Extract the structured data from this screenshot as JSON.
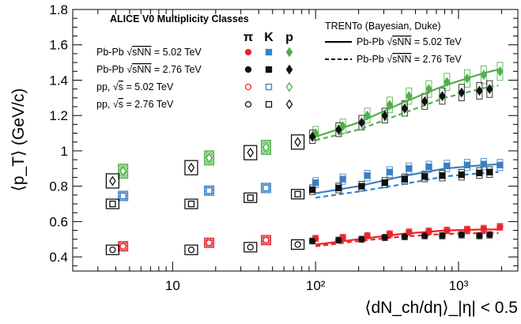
{
  "chart_data": {
    "type": "scatter",
    "title": "ALICE V0 Multiplicity Classes",
    "xlabel": "⟨dN_ch/dη⟩_|η| < 0.5",
    "ylabel": "⟨p_T⟩ (GeV/c)",
    "xscale": "log",
    "xlim": [
      2,
      2600
    ],
    "ylim": [
      0.32,
      1.8
    ],
    "xticks": [
      10,
      100,
      1000
    ],
    "xtick_labels": [
      "10",
      "10²",
      "10³"
    ],
    "yticks": [
      0.4,
      0.6,
      0.8,
      1.0,
      1.2,
      1.4,
      1.6,
      1.8
    ],
    "ytick_labels": [
      "0.4",
      "0.6",
      "0.8",
      "1",
      "1.2",
      "1.4",
      "1.6",
      "1.8"
    ],
    "species_header": [
      "π",
      "K",
      "p"
    ],
    "colors": {
      "pi": "#e8262b",
      "K": "#3a7fc4",
      "p": "#4fb04a",
      "black": "#111111"
    },
    "legend": [
      {
        "label": "Pb-Pb √sNN = 5.02 TeV",
        "label_main": "Pb-Pb ",
        "label_sqrt": "sNN",
        "label_tail": " = 5.02 TeV",
        "style": "filled-color"
      },
      {
        "label": "Pb-Pb √sNN = 2.76 TeV",
        "label_main": "Pb-Pb ",
        "label_sqrt": "sNN",
        "label_tail": " = 2.76 TeV",
        "style": "filled-black"
      },
      {
        "label": "pp, √s = 5.02 TeV",
        "label_main": "pp, ",
        "label_sqrt": "s",
        "label_tail": " = 5.02 TeV",
        "style": "open-color"
      },
      {
        "label": "pp, √s = 2.76 TeV",
        "label_main": "pp, ",
        "label_sqrt": "s",
        "label_tail": " = 2.76 TeV",
        "style": "open-black"
      }
    ],
    "model_legend": {
      "title": "TRENTo (Bayesian, Duke)",
      "entries": [
        {
          "label": "Pb-Pb √sNN = 5.02 TeV",
          "label_main": "Pb-Pb ",
          "label_sqrt": "sNN",
          "label_tail": " = 5.02 TeV",
          "dash": "solid"
        },
        {
          "label": "Pb-Pb √sNN = 2.76 TeV",
          "label_main": "Pb-Pb ",
          "label_sqrt": "sNN",
          "label_tail": " = 2.76 TeV",
          "dash": "dashed"
        }
      ]
    },
    "series": [
      {
        "name": "π Pb-Pb 5.02 TeV",
        "color": "pi",
        "marker": "circle-filled",
        "x": [
          100,
          155,
          230,
          330,
          450,
          620,
          830,
          1150,
          1500,
          1950
        ],
        "y": [
          0.505,
          0.51,
          0.52,
          0.53,
          0.54,
          0.545,
          0.55,
          0.555,
          0.56,
          0.57
        ]
      },
      {
        "name": "π Pb-Pb 2.76 TeV",
        "color": "black",
        "marker": "circle-filled",
        "x": [
          95,
          145,
          210,
          305,
          420,
          580,
          770,
          1050,
          1400,
          1650
        ],
        "y": [
          0.49,
          0.495,
          0.5,
          0.51,
          0.515,
          0.52,
          0.52,
          0.525,
          0.52,
          0.525
        ]
      },
      {
        "name": "π pp 5.02 TeV",
        "color": "pi",
        "marker": "circle-open",
        "x": [
          4.5,
          18,
          45
        ],
        "y": [
          0.46,
          0.48,
          0.495
        ]
      },
      {
        "name": "π pp 2.76 TeV",
        "color": "black",
        "marker": "circle-open",
        "x": [
          3.8,
          13.5,
          35,
          75
        ],
        "y": [
          0.44,
          0.44,
          0.455,
          0.47
        ]
      },
      {
        "name": "K Pb-Pb 5.02 TeV",
        "color": "K",
        "marker": "square-filled",
        "x": [
          100,
          155,
          230,
          330,
          450,
          620,
          830,
          1150,
          1500,
          1950
        ],
        "y": [
          0.82,
          0.84,
          0.86,
          0.88,
          0.9,
          0.91,
          0.915,
          0.92,
          0.925,
          0.92
        ]
      },
      {
        "name": "K Pb-Pb 2.76 TeV",
        "color": "black",
        "marker": "square-filled",
        "x": [
          95,
          145,
          210,
          305,
          420,
          580,
          770,
          1050,
          1400,
          1650
        ],
        "y": [
          0.78,
          0.79,
          0.8,
          0.82,
          0.84,
          0.855,
          0.86,
          0.865,
          0.875,
          0.88
        ]
      },
      {
        "name": "K pp 5.02 TeV",
        "color": "K",
        "marker": "square-open",
        "x": [
          4.5,
          18,
          45
        ],
        "y": [
          0.745,
          0.775,
          0.79
        ]
      },
      {
        "name": "K pp 2.76 TeV",
        "color": "black",
        "marker": "square-open",
        "x": [
          3.8,
          13.5,
          35,
          75
        ],
        "y": [
          0.7,
          0.7,
          0.735,
          0.755
        ]
      },
      {
        "name": "p Pb-Pb 5.02 TeV",
        "color": "p",
        "marker": "diamond-filled",
        "x": [
          100,
          155,
          230,
          330,
          450,
          620,
          830,
          1150,
          1500,
          1950
        ],
        "y": [
          1.1,
          1.14,
          1.2,
          1.26,
          1.31,
          1.35,
          1.39,
          1.41,
          1.43,
          1.45
        ]
      },
      {
        "name": "p Pb-Pb 2.76 TeV",
        "color": "black",
        "marker": "diamond-filled",
        "x": [
          95,
          145,
          210,
          305,
          420,
          580,
          770,
          1050,
          1400,
          1650
        ],
        "y": [
          1.08,
          1.12,
          1.16,
          1.2,
          1.24,
          1.28,
          1.31,
          1.33,
          1.34,
          1.35
        ]
      },
      {
        "name": "p pp 5.02 TeV",
        "color": "p",
        "marker": "diamond-open",
        "x": [
          4.5,
          18,
          45
        ],
        "y": [
          0.885,
          0.96,
          1.02
        ]
      },
      {
        "name": "p pp 2.76 TeV",
        "color": "black",
        "marker": "diamond-open",
        "x": [
          3.8,
          13.5,
          35,
          75
        ],
        "y": [
          0.83,
          0.905,
          0.99,
          1.05
        ]
      }
    ],
    "model_curves": [
      {
        "name": "TRENTo π 5.02 TeV",
        "color": "pi",
        "dash": "solid",
        "x": [
          100,
          200,
          400,
          800,
          1500,
          2000
        ],
        "y": [
          0.47,
          0.5,
          0.53,
          0.55,
          0.555,
          0.555
        ]
      },
      {
        "name": "TRENTo π 2.76 TeV",
        "color": "pi",
        "dash": "dashed",
        "x": [
          100,
          200,
          400,
          800,
          1500,
          1900
        ],
        "y": [
          0.46,
          0.49,
          0.515,
          0.53,
          0.535,
          0.535
        ]
      },
      {
        "name": "TRENTo K 5.02 TeV",
        "color": "K",
        "dash": "solid",
        "x": [
          100,
          200,
          400,
          800,
          1500,
          2000
        ],
        "y": [
          0.76,
          0.8,
          0.855,
          0.9,
          0.92,
          0.925
        ]
      },
      {
        "name": "TRENTo K 2.76 TeV",
        "color": "K",
        "dash": "dashed",
        "x": [
          100,
          200,
          400,
          800,
          1500,
          1900
        ],
        "y": [
          0.735,
          0.77,
          0.81,
          0.855,
          0.875,
          0.88
        ]
      },
      {
        "name": "TRENTo p 5.02 TeV",
        "color": "p",
        "dash": "solid",
        "x": [
          100,
          200,
          400,
          800,
          1500,
          2000
        ],
        "y": [
          1.08,
          1.16,
          1.27,
          1.37,
          1.44,
          1.465
        ]
      },
      {
        "name": "TRENTo p 2.76 TeV",
        "color": "p",
        "dash": "dashed",
        "x": [
          100,
          200,
          400,
          800,
          1500,
          1900
        ],
        "y": [
          1.06,
          1.12,
          1.21,
          1.3,
          1.355,
          1.37
        ]
      }
    ]
  }
}
